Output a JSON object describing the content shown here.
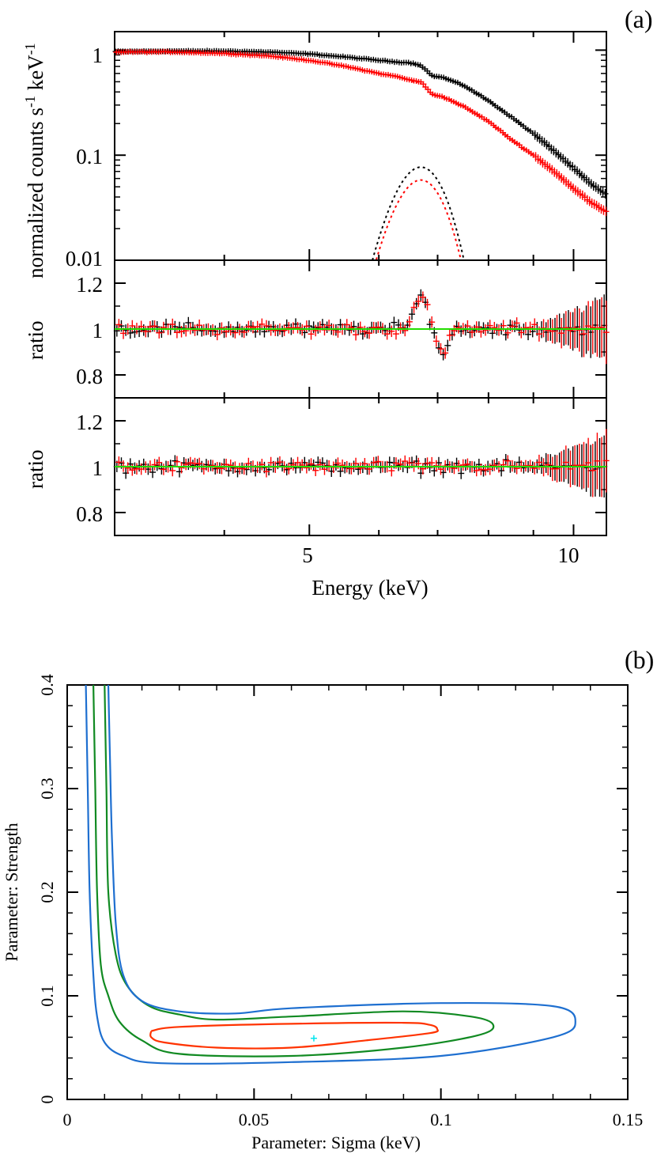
{
  "chart_data": [
    {
      "panel": "(a)",
      "type": "line",
      "title": "",
      "xlabel": "Energy (keV)",
      "xscale": "log",
      "xlim": [
        3.0,
        10.9
      ],
      "x_ticks": [
        5,
        10
      ],
      "x_tick_labels": [
        "5",
        "10"
      ],
      "subpanels": [
        {
          "name": "spectrum",
          "ylabel": "normalized counts s⁻¹ keV⁻¹",
          "ylabel_parts": [
            "normalized counts s",
            "-1",
            " keV",
            "-1"
          ],
          "yscale": "log",
          "ylim": [
            0.01,
            1.5
          ],
          "y_ticks": [
            1,
            0.1,
            0.01
          ],
          "y_tick_labels": [
            "1",
            "0.1",
            "0.01"
          ],
          "series": [
            {
              "name": "black data",
              "color": "#000000",
              "x": [
                3.0,
                3.5,
                4.0,
                4.5,
                5.0,
                5.5,
                6.0,
                6.3,
                6.5,
                6.7,
                6.9,
                7.1,
                7.5,
                8.0,
                8.5,
                9.0,
                9.5,
                10.0,
                10.5,
                10.9
              ],
              "y": [
                0.97,
                0.98,
                0.98,
                0.96,
                0.92,
                0.86,
                0.8,
                0.77,
                0.76,
                0.72,
                0.57,
                0.55,
                0.46,
                0.33,
                0.23,
                0.16,
                0.11,
                0.075,
                0.052,
                0.042
              ]
            },
            {
              "name": "red data",
              "color": "#ff0000",
              "x": [
                3.0,
                3.5,
                4.0,
                4.5,
                5.0,
                5.5,
                6.0,
                6.3,
                6.5,
                6.7,
                6.9,
                7.1,
                7.5,
                8.0,
                8.5,
                9.0,
                9.5,
                10.0,
                10.5,
                10.9
              ],
              "y": [
                0.96,
                0.96,
                0.93,
                0.88,
                0.8,
                0.7,
                0.6,
                0.56,
                0.52,
                0.5,
                0.38,
                0.36,
                0.29,
                0.21,
                0.14,
                0.1,
                0.07,
                0.048,
                0.035,
                0.029
              ]
            },
            {
              "name": "black Gaussian line model",
              "color": "#000000",
              "style": "dotted",
              "peak_energy": 6.7,
              "sigma": 0.22,
              "peak": 0.077
            },
            {
              "name": "red Gaussian line model",
              "color": "#ff0000",
              "style": "dotted",
              "peak_energy": 6.7,
              "sigma": 0.22,
              "peak": 0.058
            }
          ]
        },
        {
          "name": "ratio (continuum model)",
          "ylabel": "ratio",
          "ylim": [
            0.7,
            1.3
          ],
          "y_ticks": [
            1.2,
            1,
            0.8
          ],
          "y_tick_labels": [
            "1.2",
            "1",
            "0.8"
          ],
          "reference_line": {
            "value": 1,
            "color": "#22dd00"
          },
          "features": {
            "bump_energy": 6.7,
            "bump_ratio": 1.15,
            "dip_energy": 7.1,
            "dip_ratio": 0.88
          }
        },
        {
          "name": "ratio (with line)",
          "ylabel": "ratio",
          "ylim": [
            0.7,
            1.3
          ],
          "y_ticks": [
            1.2,
            1,
            0.8
          ],
          "y_tick_labels": [
            "1.2",
            "1",
            "0.8"
          ],
          "reference_line": {
            "value": 1,
            "color": "#22dd00"
          }
        }
      ]
    },
    {
      "panel": "(b)",
      "type": "line",
      "title": "",
      "xlabel": "Parameter: Sigma (keV)",
      "ylabel": "Parameter: Strength",
      "xlim": [
        0,
        0.15
      ],
      "ylim": [
        0,
        0.4
      ],
      "x_ticks": [
        0,
        0.05,
        0.1,
        0.15
      ],
      "x_tick_labels": [
        "0",
        "0.05",
        "0.1",
        "0.15"
      ],
      "y_ticks": [
        0,
        0.1,
        0.2,
        0.3,
        0.4
      ],
      "y_tick_labels": [
        "0",
        "0.1",
        "0.2",
        "0.3",
        "0.4"
      ],
      "best_fit": {
        "sigma": 0.066,
        "strength": 0.059,
        "color": "#00e5ee"
      },
      "series": [
        {
          "name": "inner contour",
          "color": "#ff3300",
          "points": [
            [
              0.0225,
              0.066
            ],
            [
              0.03,
              0.07
            ],
            [
              0.06,
              0.073
            ],
            [
              0.09,
              0.074
            ],
            [
              0.097,
              0.072
            ],
            [
              0.099,
              0.068
            ],
            [
              0.097,
              0.064
            ],
            [
              0.08,
              0.057
            ],
            [
              0.06,
              0.05
            ],
            [
              0.04,
              0.05
            ],
            [
              0.026,
              0.055
            ],
            [
              0.0225,
              0.06
            ],
            [
              0.0225,
              0.066
            ]
          ]
        },
        {
          "name": "middle contour",
          "color": "#118a22",
          "points": [
            [
              0.007,
              0.4
            ],
            [
              0.0075,
              0.3
            ],
            [
              0.008,
              0.2
            ],
            [
              0.009,
              0.13
            ],
            [
              0.011,
              0.1
            ],
            [
              0.014,
              0.075
            ],
            [
              0.02,
              0.057
            ],
            [
              0.03,
              0.044
            ],
            [
              0.06,
              0.042
            ],
            [
              0.09,
              0.05
            ],
            [
              0.11,
              0.062
            ],
            [
              0.114,
              0.072
            ],
            [
              0.108,
              0.08
            ],
            [
              0.09,
              0.085
            ],
            [
              0.06,
              0.08
            ],
            [
              0.04,
              0.077
            ],
            [
              0.03,
              0.082
            ],
            [
              0.022,
              0.09
            ],
            [
              0.016,
              0.11
            ],
            [
              0.013,
              0.14
            ],
            [
              0.011,
              0.2
            ],
            [
              0.0105,
              0.3
            ],
            [
              0.01,
              0.4
            ]
          ]
        },
        {
          "name": "outer contour",
          "color": "#1e6fd0",
          "points": [
            [
              0.005,
              0.4
            ],
            [
              0.0055,
              0.3
            ],
            [
              0.006,
              0.2
            ],
            [
              0.007,
              0.12
            ],
            [
              0.008,
              0.08
            ],
            [
              0.01,
              0.055
            ],
            [
              0.015,
              0.042
            ],
            [
              0.025,
              0.035
            ],
            [
              0.06,
              0.036
            ],
            [
              0.1,
              0.042
            ],
            [
              0.13,
              0.06
            ],
            [
              0.136,
              0.075
            ],
            [
              0.13,
              0.09
            ],
            [
              0.1,
              0.093
            ],
            [
              0.06,
              0.088
            ],
            [
              0.045,
              0.083
            ],
            [
              0.03,
              0.085
            ],
            [
              0.02,
              0.095
            ],
            [
              0.015,
              0.12
            ],
            [
              0.013,
              0.17
            ],
            [
              0.012,
              0.25
            ],
            [
              0.0115,
              0.32
            ],
            [
              0.011,
              0.4
            ]
          ]
        }
      ]
    }
  ]
}
